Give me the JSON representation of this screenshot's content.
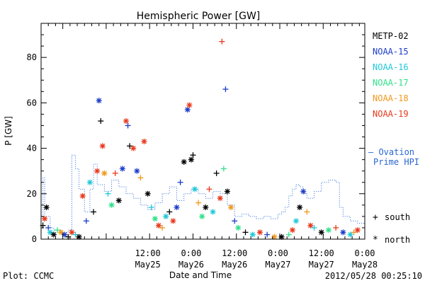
{
  "chart_data": {
    "type": "scatter",
    "title": "Hemispheric Power [GW]",
    "xlabel": "Date and Time",
    "ylabel": "P [GW]",
    "ylim": [
      0,
      95
    ],
    "xlim": [
      "2012-05-24 06:30",
      "2012-05-28 00:00"
    ],
    "y_ticks": [
      0,
      20,
      40,
      60,
      80
    ],
    "x_ticks": [
      {
        "t": "2012-05-25 12:00",
        "time": "12:00",
        "date": "May25"
      },
      {
        "t": "2012-05-26 00:00",
        "time": "0:00",
        "date": "May26"
      },
      {
        "t": "2012-05-26 12:00",
        "time": "12:00",
        "date": "May26"
      },
      {
        "t": "2012-05-27 00:00",
        "time": "0:00",
        "date": "May27"
      },
      {
        "t": "2012-05-27 12:00",
        "time": "12:00",
        "date": "May27"
      },
      {
        "t": "2012-05-28 00:00",
        "time": "0:00",
        "date": "May28"
      }
    ],
    "legend_placement": "right",
    "series": [
      {
        "name": "METP-02",
        "color": "#000000"
      },
      {
        "name": "NOAA-15",
        "color": "#1c3cc8"
      },
      {
        "name": "NOAA-16",
        "color": "#1fc8d8"
      },
      {
        "name": "NOAA-17",
        "color": "#2fe08a"
      },
      {
        "name": "NOAA-18",
        "color": "#f0981c"
      },
      {
        "name": "NOAA-19",
        "color": "#e8381c"
      }
    ],
    "points": [
      {
        "t": "2012-05-24 07:00",
        "y": 6,
        "s": 0,
        "m": "+"
      },
      {
        "t": "2012-05-24 08:00",
        "y": 14,
        "s": 0,
        "m": "*"
      },
      {
        "t": "2012-05-24 07:30",
        "y": 9,
        "s": 5,
        "m": "*"
      },
      {
        "t": "2012-05-24 08:30",
        "y": 5,
        "s": 1,
        "m": "+"
      },
      {
        "t": "2012-05-24 09:00",
        "y": 3,
        "s": 2,
        "m": "*"
      },
      {
        "t": "2012-05-24 10:00",
        "y": 2,
        "s": 0,
        "m": "*"
      },
      {
        "t": "2012-05-24 11:00",
        "y": 4,
        "s": 3,
        "m": "+"
      },
      {
        "t": "2012-05-24 12:00",
        "y": 3,
        "s": 4,
        "m": "*"
      },
      {
        "t": "2012-05-24 13:00",
        "y": 2,
        "s": 1,
        "m": "*"
      },
      {
        "t": "2012-05-24 14:00",
        "y": 1,
        "s": 0,
        "m": "+"
      },
      {
        "t": "2012-05-24 15:00",
        "y": 3,
        "s": 5,
        "m": "*"
      },
      {
        "t": "2012-05-24 16:00",
        "y": 2,
        "s": 2,
        "m": "+"
      },
      {
        "t": "2012-05-24 17:00",
        "y": 1,
        "s": 0,
        "m": "*"
      },
      {
        "t": "2012-05-24 18:00",
        "y": 19,
        "s": 5,
        "m": "*"
      },
      {
        "t": "2012-05-24 19:00",
        "y": 8,
        "s": 1,
        "m": "+"
      },
      {
        "t": "2012-05-24 20:00",
        "y": 25,
        "s": 2,
        "m": "*"
      },
      {
        "t": "2012-05-24 21:00",
        "y": 12,
        "s": 0,
        "m": "+"
      },
      {
        "t": "2012-05-24 22:00",
        "y": 30,
        "s": 5,
        "m": "*"
      },
      {
        "t": "2012-05-24 22:30",
        "y": 61,
        "s": 1,
        "m": "*"
      },
      {
        "t": "2012-05-24 23:00",
        "y": 52,
        "s": 0,
        "m": "+"
      },
      {
        "t": "2012-05-24 23:30",
        "y": 41,
        "s": 5,
        "m": "*"
      },
      {
        "t": "2012-05-25 00:00",
        "y": 29,
        "s": 4,
        "m": "*"
      },
      {
        "t": "2012-05-25 01:00",
        "y": 20,
        "s": 2,
        "m": "+"
      },
      {
        "t": "2012-05-25 02:00",
        "y": 15,
        "s": 3,
        "m": "*"
      },
      {
        "t": "2012-05-25 03:00",
        "y": 29,
        "s": 5,
        "m": "+"
      },
      {
        "t": "2012-05-25 04:00",
        "y": 17,
        "s": 0,
        "m": "*"
      },
      {
        "t": "2012-05-25 05:00",
        "y": 31,
        "s": 1,
        "m": "*"
      },
      {
        "t": "2012-05-25 06:00",
        "y": 52,
        "s": 5,
        "m": "*"
      },
      {
        "t": "2012-05-25 06:30",
        "y": 50,
        "s": 1,
        "m": "+"
      },
      {
        "t": "2012-05-25 07:00",
        "y": 41,
        "s": 0,
        "m": "+"
      },
      {
        "t": "2012-05-25 08:00",
        "y": 40,
        "s": 5,
        "m": "*"
      },
      {
        "t": "2012-05-25 09:00",
        "y": 30,
        "s": 1,
        "m": "*"
      },
      {
        "t": "2012-05-25 10:00",
        "y": 27,
        "s": 4,
        "m": "+"
      },
      {
        "t": "2012-05-25 11:00",
        "y": 43,
        "s": 5,
        "m": "*"
      },
      {
        "t": "2012-05-25 12:00",
        "y": 20,
        "s": 0,
        "m": "*"
      },
      {
        "t": "2012-05-25 13:00",
        "y": 14,
        "s": 2,
        "m": "+"
      },
      {
        "t": "2012-05-25 14:00",
        "y": 9,
        "s": 3,
        "m": "*"
      },
      {
        "t": "2012-05-25 15:00",
        "y": 6,
        "s": 5,
        "m": "*"
      },
      {
        "t": "2012-05-25 16:00",
        "y": 5,
        "s": 4,
        "m": "+"
      },
      {
        "t": "2012-05-25 17:00",
        "y": 10,
        "s": 2,
        "m": "*"
      },
      {
        "t": "2012-05-25 18:00",
        "y": 12,
        "s": 0,
        "m": "+"
      },
      {
        "t": "2012-05-25 19:00",
        "y": 8,
        "s": 5,
        "m": "*"
      },
      {
        "t": "2012-05-25 20:00",
        "y": 14,
        "s": 1,
        "m": "*"
      },
      {
        "t": "2012-05-25 21:00",
        "y": 25,
        "s": 1,
        "m": "+"
      },
      {
        "t": "2012-05-25 22:00",
        "y": 34,
        "s": 0,
        "m": "*"
      },
      {
        "t": "2012-05-25 23:00",
        "y": 57,
        "s": 1,
        "m": "*"
      },
      {
        "t": "2012-05-25 23:30",
        "y": 59,
        "s": 5,
        "m": "*"
      },
      {
        "t": "2012-05-26 00:00",
        "y": 35,
        "s": 0,
        "m": "*"
      },
      {
        "t": "2012-05-26 00:30",
        "y": 37,
        "s": 0,
        "m": "+"
      },
      {
        "t": "2012-05-26 01:00",
        "y": 22,
        "s": 2,
        "m": "*"
      },
      {
        "t": "2012-05-26 02:00",
        "y": 16,
        "s": 4,
        "m": "+"
      },
      {
        "t": "2012-05-26 03:00",
        "y": 10,
        "s": 3,
        "m": "*"
      },
      {
        "t": "2012-05-26 04:00",
        "y": 14,
        "s": 0,
        "m": "*"
      },
      {
        "t": "2012-05-26 05:00",
        "y": 22,
        "s": 5,
        "m": "+"
      },
      {
        "t": "2012-05-26 06:00",
        "y": 12,
        "s": 2,
        "m": "*"
      },
      {
        "t": "2012-05-26 07:00",
        "y": 29,
        "s": 0,
        "m": "+"
      },
      {
        "t": "2012-05-26 08:00",
        "y": 18,
        "s": 5,
        "m": "*"
      },
      {
        "t": "2012-05-26 08:30",
        "y": 87,
        "s": 5,
        "m": "+"
      },
      {
        "t": "2012-05-26 09:00",
        "y": 31,
        "s": 3,
        "m": "+"
      },
      {
        "t": "2012-05-26 09:30",
        "y": 66,
        "s": 1,
        "m": "+"
      },
      {
        "t": "2012-05-26 10:00",
        "y": 21,
        "s": 0,
        "m": "*"
      },
      {
        "t": "2012-05-26 11:00",
        "y": 14,
        "s": 4,
        "m": "*"
      },
      {
        "t": "2012-05-26 12:00",
        "y": 8,
        "s": 1,
        "m": "+"
      },
      {
        "t": "2012-05-26 13:00",
        "y": 5,
        "s": 3,
        "m": "*"
      },
      {
        "t": "2012-05-26 15:00",
        "y": 3,
        "s": 0,
        "m": "+"
      },
      {
        "t": "2012-05-26 17:00",
        "y": 2,
        "s": 2,
        "m": "*"
      },
      {
        "t": "2012-05-26 19:00",
        "y": 3,
        "s": 5,
        "m": "*"
      },
      {
        "t": "2012-05-26 21:00",
        "y": 2,
        "s": 1,
        "m": "+"
      },
      {
        "t": "2012-05-26 23:00",
        "y": 1,
        "s": 4,
        "m": "*"
      },
      {
        "t": "2012-05-27 01:00",
        "y": 1,
        "s": 0,
        "m": "*"
      },
      {
        "t": "2012-05-27 03:00",
        "y": 2,
        "s": 3,
        "m": "+"
      },
      {
        "t": "2012-05-27 04:00",
        "y": 4,
        "s": 5,
        "m": "*"
      },
      {
        "t": "2012-05-27 05:00",
        "y": 8,
        "s": 2,
        "m": "*"
      },
      {
        "t": "2012-05-27 06:00",
        "y": 14,
        "s": 0,
        "m": "*"
      },
      {
        "t": "2012-05-27 07:00",
        "y": 21,
        "s": 1,
        "m": "*"
      },
      {
        "t": "2012-05-27 08:00",
        "y": 12,
        "s": 4,
        "m": "+"
      },
      {
        "t": "2012-05-27 09:00",
        "y": 6,
        "s": 5,
        "m": "*"
      },
      {
        "t": "2012-05-27 10:00",
        "y": 5,
        "s": 2,
        "m": "+"
      },
      {
        "t": "2012-05-27 12:00",
        "y": 3,
        "s": 0,
        "m": "*"
      },
      {
        "t": "2012-05-27 14:00",
        "y": 4,
        "s": 3,
        "m": "*"
      },
      {
        "t": "2012-05-27 16:00",
        "y": 5,
        "s": 5,
        "m": "+"
      },
      {
        "t": "2012-05-27 18:00",
        "y": 3,
        "s": 1,
        "m": "*"
      },
      {
        "t": "2012-05-27 20:00",
        "y": 2,
        "s": 2,
        "m": "*"
      },
      {
        "t": "2012-05-27 21:00",
        "y": 3,
        "s": 4,
        "m": "+"
      },
      {
        "t": "2012-05-27 22:00",
        "y": 4,
        "s": 5,
        "m": "*"
      }
    ]
  },
  "ovation": {
    "label": "– Ovation Prime HPI",
    "color": "#2a66d4",
    "dotted_color": "#4a80e0",
    "steps": [
      {
        "t": "2012-05-24 06:30",
        "y": 6
      },
      {
        "t": "2012-05-24 07:00",
        "y": 27
      },
      {
        "t": "2012-05-24 07:30",
        "y": 10
      },
      {
        "t": "2012-05-24 09:00",
        "y": 5
      },
      {
        "t": "2012-05-24 10:00",
        "y": 4
      },
      {
        "t": "2012-05-24 12:00",
        "y": 3
      },
      {
        "t": "2012-05-24 14:00",
        "y": 4
      },
      {
        "t": "2012-05-24 15:00",
        "y": 37
      },
      {
        "t": "2012-05-24 16:00",
        "y": 31
      },
      {
        "t": "2012-05-24 17:00",
        "y": 22
      },
      {
        "t": "2012-05-24 18:30",
        "y": 12
      },
      {
        "t": "2012-05-24 20:00",
        "y": 22
      },
      {
        "t": "2012-05-24 21:00",
        "y": 33
      },
      {
        "t": "2012-05-24 22:00",
        "y": 24
      },
      {
        "t": "2012-05-25 00:00",
        "y": 21
      },
      {
        "t": "2012-05-25 02:00",
        "y": 26
      },
      {
        "t": "2012-05-25 04:00",
        "y": 23
      },
      {
        "t": "2012-05-25 06:00",
        "y": 20
      },
      {
        "t": "2012-05-25 08:00",
        "y": 18
      },
      {
        "t": "2012-05-25 10:00",
        "y": 15
      },
      {
        "t": "2012-05-25 12:00",
        "y": 13
      },
      {
        "t": "2012-05-25 14:00",
        "y": 16
      },
      {
        "t": "2012-05-25 16:00",
        "y": 20
      },
      {
        "t": "2012-05-25 18:00",
        "y": 23
      },
      {
        "t": "2012-05-25 20:00",
        "y": 17
      },
      {
        "t": "2012-05-25 22:00",
        "y": 20
      },
      {
        "t": "2012-05-26 00:00",
        "y": 22
      },
      {
        "t": "2012-05-26 02:00",
        "y": 20
      },
      {
        "t": "2012-05-26 04:00",
        "y": 18
      },
      {
        "t": "2012-05-26 06:00",
        "y": 21
      },
      {
        "t": "2012-05-26 08:00",
        "y": 20
      },
      {
        "t": "2012-05-26 10:00",
        "y": 15
      },
      {
        "t": "2012-05-26 12:00",
        "y": 10
      },
      {
        "t": "2012-05-26 14:00",
        "y": 11
      },
      {
        "t": "2012-05-26 16:00",
        "y": 10
      },
      {
        "t": "2012-05-26 18:00",
        "y": 9
      },
      {
        "t": "2012-05-26 20:00",
        "y": 10
      },
      {
        "t": "2012-05-26 22:00",
        "y": 9
      },
      {
        "t": "2012-05-27 00:00",
        "y": 11
      },
      {
        "t": "2012-05-27 01:00",
        "y": 12
      },
      {
        "t": "2012-05-27 02:00",
        "y": 14
      },
      {
        "t": "2012-05-27 03:00",
        "y": 19
      },
      {
        "t": "2012-05-27 04:00",
        "y": 22
      },
      {
        "t": "2012-05-27 05:00",
        "y": 24
      },
      {
        "t": "2012-05-27 06:00",
        "y": 23
      },
      {
        "t": "2012-05-27 07:00",
        "y": 20
      },
      {
        "t": "2012-05-27 08:00",
        "y": 18
      },
      {
        "t": "2012-05-27 10:00",
        "y": 21
      },
      {
        "t": "2012-05-27 12:00",
        "y": 25
      },
      {
        "t": "2012-05-27 14:00",
        "y": 26
      },
      {
        "t": "2012-05-27 16:00",
        "y": 25
      },
      {
        "t": "2012-05-27 17:00",
        "y": 14
      },
      {
        "t": "2012-05-27 18:00",
        "y": 10
      },
      {
        "t": "2012-05-27 20:00",
        "y": 8
      },
      {
        "t": "2012-05-27 22:00",
        "y": 7
      },
      {
        "t": "2012-05-28 00:00",
        "y": 7
      }
    ]
  },
  "marker_legend": {
    "south_symbol": "+",
    "south_label": "south",
    "north_symbol": "*",
    "north_label": "north"
  },
  "footer": {
    "left": "Plot: CCMC",
    "right": "2012/05/28 00:25:10"
  }
}
